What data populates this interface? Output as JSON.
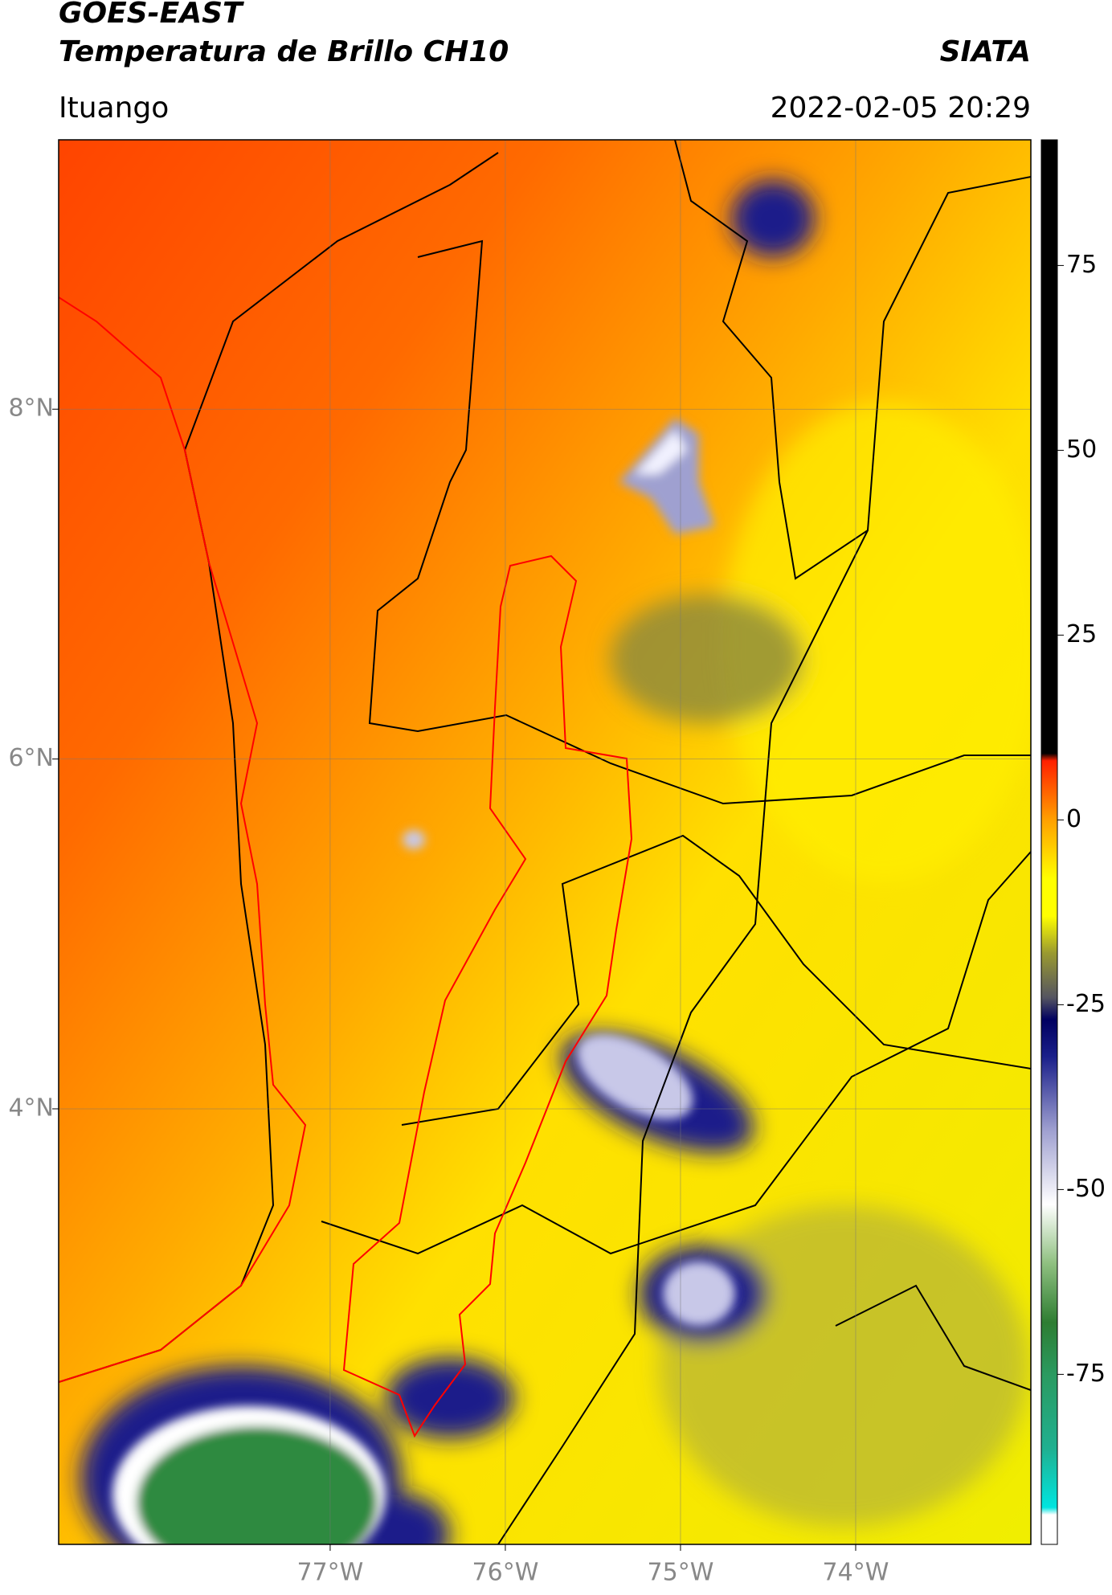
{
  "header": {
    "title": "GOES-EAST",
    "subtitle": "Temperatura de Brillo CH10",
    "source": "SIATA",
    "region": "Ituango",
    "datetime": "2022-02-05 20:29"
  },
  "map": {
    "xlim": [
      -78.55,
      -73.0
    ],
    "ylim": [
      1.51,
      9.54
    ],
    "xticks": [
      {
        "value": -77,
        "label": "77°W"
      },
      {
        "value": -76,
        "label": "76°W"
      },
      {
        "value": -75,
        "label": "75°W"
      },
      {
        "value": -74,
        "label": "74°W"
      }
    ],
    "yticks": [
      {
        "value": 8,
        "label": "8°N"
      },
      {
        "value": 6,
        "label": "6°N"
      },
      {
        "value": 4,
        "label": "4°N"
      }
    ],
    "grid": true
  },
  "colorbar": {
    "clim": [
      -98,
      92
    ],
    "ticks": [
      75,
      50,
      25,
      0,
      -25,
      -50,
      -75
    ],
    "colormap": [
      {
        "value": -98,
        "color": "#ffffff"
      },
      {
        "value": -94,
        "color": "#ffffff"
      },
      {
        "value": -93,
        "color": "#00e5e0"
      },
      {
        "value": -85,
        "color": "#20b090"
      },
      {
        "value": -75,
        "color": "#2a9a60"
      },
      {
        "value": -68,
        "color": "#2e7d32"
      },
      {
        "value": -60,
        "color": "#8fc080"
      },
      {
        "value": -52,
        "color": "#ffffff"
      },
      {
        "value": -42,
        "color": "#9fa0d0"
      },
      {
        "value": -32,
        "color": "#1a1f8a"
      },
      {
        "value": -27,
        "color": "#000060"
      },
      {
        "value": -24,
        "color": "#555560"
      },
      {
        "value": -18,
        "color": "#9a9a30"
      },
      {
        "value": -13,
        "color": "#ffff00"
      },
      {
        "value": -8,
        "color": "#ffff00"
      },
      {
        "value": 0,
        "color": "#ffa000"
      },
      {
        "value": 8,
        "color": "#ff2000"
      },
      {
        "value": 9,
        "color": "#000000"
      },
      {
        "value": 92,
        "color": "#000000"
      }
    ]
  }
}
